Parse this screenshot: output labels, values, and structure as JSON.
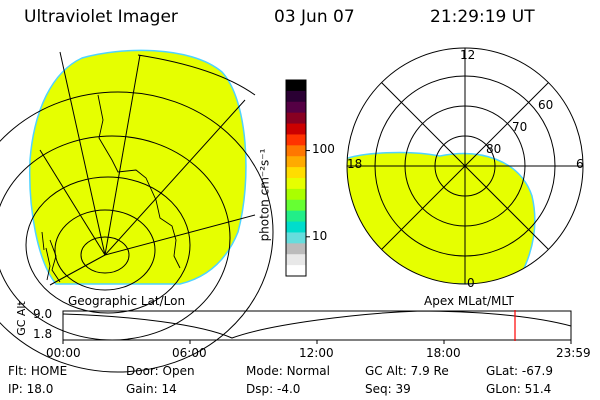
{
  "header": {
    "instrument": "Ultraviolet Imager",
    "date": "03 Jun 07",
    "time": "21:29:19 UT"
  },
  "colorbar": {
    "unit_label": "photon cm⁻²s⁻¹",
    "ticks": [
      "100",
      "10"
    ],
    "colors": [
      "#000000",
      "#2a0033",
      "#550044",
      "#880022",
      "#cc0000",
      "#ff3300",
      "#ff7700",
      "#ffaa00",
      "#ffdd00",
      "#e6ff00",
      "#aaff00",
      "#66ff33",
      "#22ee88",
      "#00ddcc",
      "#66dddd",
      "#bbbbbb",
      "#e8e8e8",
      "#ffffff"
    ]
  },
  "left_panel": {
    "caption": "Geographic Lat/Lon",
    "image_color": "#e6ff00",
    "edge_color": "#4fd3ff"
  },
  "right_panel": {
    "caption": "Apex MLat/MLT",
    "mlt_labels": {
      "top": "12",
      "left": "18",
      "right": "6",
      "bottom": "0"
    },
    "mlat_labels": [
      "60",
      "70",
      "80"
    ]
  },
  "timeline": {
    "ylabel": "GC Alt",
    "y_ticks": [
      "9.0",
      "1.8"
    ],
    "x_ticks": [
      "00:00",
      "06:00",
      "12:00",
      "18:00",
      "23:59"
    ],
    "marker_color": "#ff0000"
  },
  "status": {
    "row1": [
      {
        "label": "Flt:",
        "value": "HOME"
      },
      {
        "label": "Door:",
        "value": "Open"
      },
      {
        "label": "Mode:",
        "value": "Normal"
      },
      {
        "label": "GC Alt:",
        "value": "7.9 Re"
      },
      {
        "label": "GLat:",
        "value": "-67.9"
      }
    ],
    "row2": [
      {
        "label": "IP:",
        "value": "18.0"
      },
      {
        "label": "Gain:",
        "value": "14"
      },
      {
        "label": "Dsp:",
        "value": "-4.0"
      },
      {
        "label": "Seq:",
        "value": "39"
      },
      {
        "label": "GLon:",
        "value": "51.4"
      }
    ]
  }
}
